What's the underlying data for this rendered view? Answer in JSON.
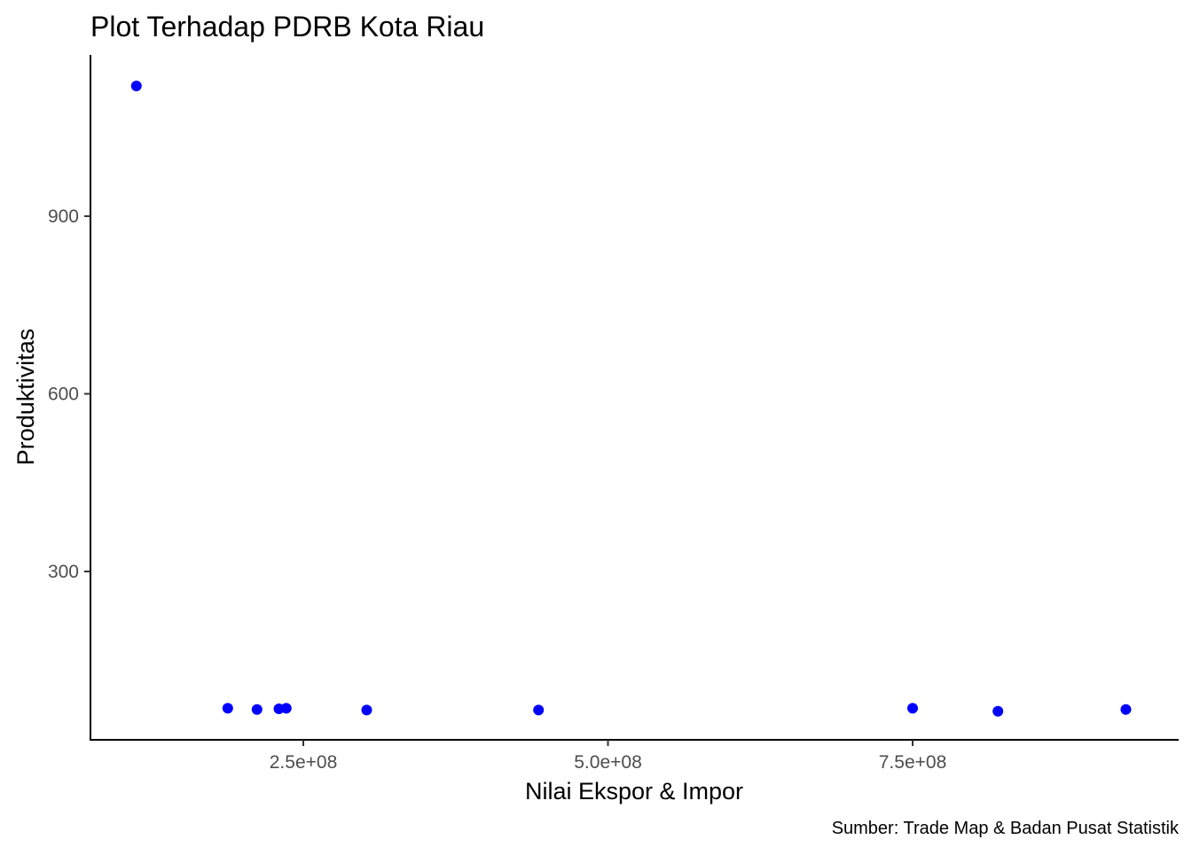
{
  "chart_data": {
    "type": "scatter",
    "title": "Plot Terhadap PDRB Kota Riau",
    "xlabel": "Nilai Ekspor & Impor",
    "ylabel": "Produktivitas",
    "caption": "Sumber:  Trade Map & Badan Pusat Statistik",
    "xlim": [
      85000000,
      955000000
    ],
    "ylim": [
      45000000,
      1165
    ],
    "x_ticks": [
      250000000,
      500000000,
      750000000
    ],
    "x_tick_labels": [
      "2.5e+08",
      "5.0e+08",
      "7.5e+08"
    ],
    "y_ticks": [
      300,
      600,
      900
    ],
    "y_tick_labels": [
      "300",
      "600",
      "900"
    ],
    "point_color": "#0000ff",
    "grid": false,
    "legend": "none",
    "x": [
      113000000,
      188000000,
      212000000,
      230000000,
      236000000,
      302000000,
      443000000,
      750000000,
      820000000,
      925000000
    ],
    "y": [
      1120,
      69,
      67,
      68,
      69,
      66,
      66,
      69,
      64,
      67
    ]
  }
}
